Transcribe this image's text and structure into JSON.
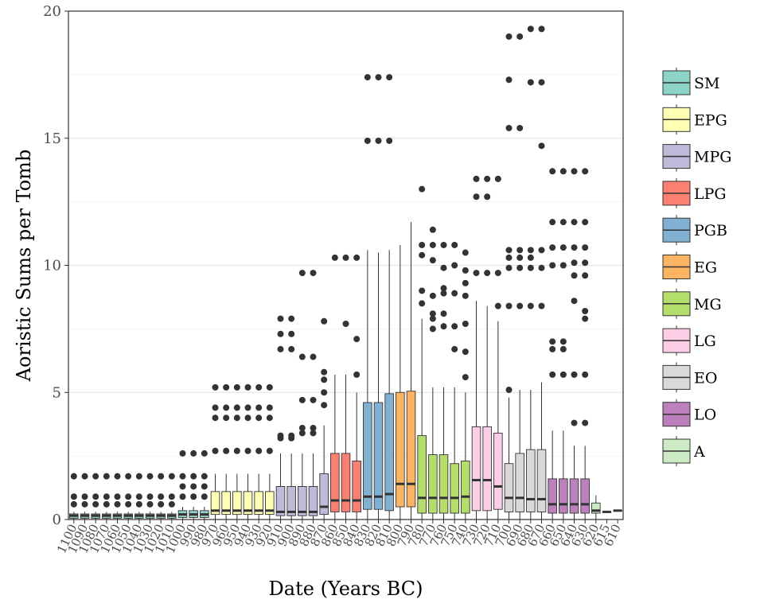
{
  "chart_data": {
    "type": "boxplot",
    "xlabel": "Date (Years BC)",
    "ylabel": "Aoristic Sums per Tomb",
    "ylim": [
      0,
      20
    ],
    "yticks": [
      0,
      5,
      10,
      15,
      20
    ],
    "grid": true,
    "legend_position": "right",
    "periods": [
      {
        "name": "SM",
        "color": "#8DD3C7"
      },
      {
        "name": "EPG",
        "color": "#FFFFB3"
      },
      {
        "name": "MPG",
        "color": "#BEBADA"
      },
      {
        "name": "LPG",
        "color": "#FB8072"
      },
      {
        "name": "PGB",
        "color": "#80B1D3"
      },
      {
        "name": "EG",
        "color": "#FDB462"
      },
      {
        "name": "MG",
        "color": "#B3DE69"
      },
      {
        "name": "LG",
        "color": "#FCCDE5"
      },
      {
        "name": "EO",
        "color": "#D9D9D9"
      },
      {
        "name": "LO",
        "color": "#BC80BD"
      },
      {
        "name": "A",
        "color": "#CCEBC5"
      }
    ],
    "boxes": [
      {
        "x": "1100",
        "period": "SM",
        "q1": 0.05,
        "median": 0.15,
        "q3": 0.22,
        "wlo": 0,
        "whi": 0.3,
        "outliers": [
          0.6,
          0.9,
          1.7
        ]
      },
      {
        "x": "1090",
        "period": "SM",
        "q1": 0.05,
        "median": 0.15,
        "q3": 0.22,
        "wlo": 0,
        "whi": 0.3,
        "outliers": [
          0.6,
          0.9,
          1.7
        ]
      },
      {
        "x": "1080",
        "period": "SM",
        "q1": 0.05,
        "median": 0.15,
        "q3": 0.22,
        "wlo": 0,
        "whi": 0.3,
        "outliers": [
          0.6,
          0.9,
          1.7
        ]
      },
      {
        "x": "1070",
        "period": "SM",
        "q1": 0.05,
        "median": 0.15,
        "q3": 0.22,
        "wlo": 0,
        "whi": 0.3,
        "outliers": [
          0.6,
          0.9,
          1.7
        ]
      },
      {
        "x": "1060",
        "period": "SM",
        "q1": 0.05,
        "median": 0.15,
        "q3": 0.22,
        "wlo": 0,
        "whi": 0.3,
        "outliers": [
          0.6,
          0.9,
          1.7
        ]
      },
      {
        "x": "1050",
        "period": "SM",
        "q1": 0.05,
        "median": 0.15,
        "q3": 0.22,
        "wlo": 0,
        "whi": 0.3,
        "outliers": [
          0.6,
          0.9,
          1.7
        ]
      },
      {
        "x": "1040",
        "period": "SM",
        "q1": 0.05,
        "median": 0.15,
        "q3": 0.22,
        "wlo": 0,
        "whi": 0.3,
        "outliers": [
          0.6,
          0.9,
          1.7
        ]
      },
      {
        "x": "1030",
        "period": "SM",
        "q1": 0.05,
        "median": 0.15,
        "q3": 0.22,
        "wlo": 0,
        "whi": 0.3,
        "outliers": [
          0.6,
          0.9,
          1.7
        ]
      },
      {
        "x": "1020",
        "period": "SM",
        "q1": 0.05,
        "median": 0.15,
        "q3": 0.22,
        "wlo": 0,
        "whi": 0.3,
        "outliers": [
          0.6,
          0.9,
          1.7
        ]
      },
      {
        "x": "1010",
        "period": "SM",
        "q1": 0.05,
        "median": 0.15,
        "q3": 0.22,
        "wlo": 0,
        "whi": 0.3,
        "outliers": [
          0.6,
          0.9,
          1.7
        ]
      },
      {
        "x": "1000",
        "period": "SM",
        "q1": 0.08,
        "median": 0.2,
        "q3": 0.35,
        "wlo": 0,
        "whi": 0.5,
        "outliers": [
          0.9,
          1.3,
          1.7,
          2.6
        ]
      },
      {
        "x": "990",
        "period": "SM",
        "q1": 0.08,
        "median": 0.2,
        "q3": 0.35,
        "wlo": 0,
        "whi": 0.5,
        "outliers": [
          0.9,
          1.3,
          1.7,
          2.6
        ]
      },
      {
        "x": "980",
        "period": "SM",
        "q1": 0.08,
        "median": 0.2,
        "q3": 0.35,
        "wlo": 0,
        "whi": 0.5,
        "outliers": [
          0.9,
          1.3,
          1.7,
          2.6
        ]
      },
      {
        "x": "970",
        "period": "EPG",
        "q1": 0.2,
        "median": 0.35,
        "q3": 1.1,
        "wlo": 0,
        "whi": 1.8,
        "outliers": [
          2.7,
          4.0,
          4.4,
          5.2
        ]
      },
      {
        "x": "960",
        "period": "EPG",
        "q1": 0.2,
        "median": 0.35,
        "q3": 1.1,
        "wlo": 0,
        "whi": 1.8,
        "outliers": [
          2.7,
          4.0,
          4.4,
          5.2
        ]
      },
      {
        "x": "950",
        "period": "EPG",
        "q1": 0.2,
        "median": 0.35,
        "q3": 1.1,
        "wlo": 0,
        "whi": 1.8,
        "outliers": [
          2.7,
          4.0,
          4.4,
          5.2
        ]
      },
      {
        "x": "940",
        "period": "EPG",
        "q1": 0.2,
        "median": 0.35,
        "q3": 1.1,
        "wlo": 0,
        "whi": 1.8,
        "outliers": [
          2.7,
          4.0,
          4.4,
          5.2
        ]
      },
      {
        "x": "930",
        "period": "EPG",
        "q1": 0.2,
        "median": 0.35,
        "q3": 1.1,
        "wlo": 0,
        "whi": 1.8,
        "outliers": [
          2.7,
          4.0,
          4.4,
          5.2
        ]
      },
      {
        "x": "920",
        "period": "EPG",
        "q1": 0.2,
        "median": 0.35,
        "q3": 1.1,
        "wlo": 0,
        "whi": 1.8,
        "outliers": [
          2.7,
          4.0,
          4.4,
          5.2
        ]
      },
      {
        "x": "910",
        "period": "MPG",
        "q1": 0.15,
        "median": 0.3,
        "q3": 1.3,
        "wlo": 0,
        "whi": 2.6,
        "outliers": [
          3.2,
          3.3,
          6.7,
          7.3,
          7.9
        ]
      },
      {
        "x": "900",
        "period": "MPG",
        "q1": 0.15,
        "median": 0.3,
        "q3": 1.3,
        "wlo": 0,
        "whi": 2.6,
        "outliers": [
          3.2,
          3.3,
          6.7,
          7.3,
          7.9
        ]
      },
      {
        "x": "890",
        "period": "MPG",
        "q1": 0.15,
        "median": 0.3,
        "q3": 1.3,
        "wlo": 0,
        "whi": 2.6,
        "outliers": [
          3.4,
          3.6,
          4.7,
          6.4,
          9.7
        ]
      },
      {
        "x": "880",
        "period": "MPG",
        "q1": 0.15,
        "median": 0.3,
        "q3": 1.3,
        "wlo": 0,
        "whi": 2.6,
        "outliers": [
          3.4,
          3.6,
          4.7,
          6.4,
          9.7
        ]
      },
      {
        "x": "870",
        "period": "MPG",
        "q1": 0.2,
        "median": 0.5,
        "q3": 1.8,
        "wlo": 0,
        "whi": 3.7,
        "outliers": [
          4.5,
          5.0,
          5.5,
          5.8,
          7.8
        ]
      },
      {
        "x": "860",
        "period": "LPG",
        "q1": 0.3,
        "median": 0.75,
        "q3": 2.6,
        "wlo": 0,
        "whi": 5.7,
        "outliers": [
          10.3
        ]
      },
      {
        "x": "850",
        "period": "LPG",
        "q1": 0.3,
        "median": 0.75,
        "q3": 2.6,
        "wlo": 0,
        "whi": 5.7,
        "outliers": [
          7.7,
          10.3
        ]
      },
      {
        "x": "840",
        "period": "LPG",
        "q1": 0.3,
        "median": 0.75,
        "q3": 2.3,
        "wlo": 0,
        "whi": 5.0,
        "outliers": [
          5.7,
          7.1,
          10.3
        ]
      },
      {
        "x": "830",
        "period": "PGB",
        "q1": 0.4,
        "median": 0.9,
        "q3": 4.6,
        "wlo": 0,
        "whi": 10.6,
        "outliers": [
          14.9,
          17.4
        ]
      },
      {
        "x": "820",
        "period": "PGB",
        "q1": 0.4,
        "median": 0.9,
        "q3": 4.6,
        "wlo": 0,
        "whi": 10.5,
        "outliers": [
          14.9,
          17.4
        ]
      },
      {
        "x": "810",
        "period": "PGB",
        "q1": 0.35,
        "median": 1.0,
        "q3": 4.95,
        "wlo": 0,
        "whi": 10.6,
        "outliers": [
          14.9,
          17.4
        ]
      },
      {
        "x": "800",
        "period": "EG",
        "q1": 0.5,
        "median": 1.4,
        "q3": 5.0,
        "wlo": 0,
        "whi": 10.8,
        "outliers": []
      },
      {
        "x": "790",
        "period": "EG",
        "q1": 0.5,
        "median": 1.4,
        "q3": 5.05,
        "wlo": 0,
        "whi": 11.7,
        "outliers": []
      },
      {
        "x": "780",
        "period": "MG",
        "q1": 0.25,
        "median": 0.85,
        "q3": 3.3,
        "wlo": 0,
        "whi": 7.9,
        "outliers": [
          8.5,
          9.0,
          10.4,
          10.8,
          13.0
        ]
      },
      {
        "x": "770",
        "period": "MG",
        "q1": 0.25,
        "median": 0.85,
        "q3": 2.55,
        "wlo": 0,
        "whi": 5.2,
        "outliers": [
          7.5,
          7.9,
          8.1,
          8.8,
          10.2,
          10.8,
          11.4
        ]
      },
      {
        "x": "760",
        "period": "MG",
        "q1": 0.25,
        "median": 0.85,
        "q3": 2.55,
        "wlo": 0,
        "whi": 5.2,
        "outliers": [
          7.6,
          8.1,
          8.9,
          9.1,
          9.9,
          10.8
        ]
      },
      {
        "x": "750",
        "period": "MG",
        "q1": 0.25,
        "median": 0.85,
        "q3": 2.2,
        "wlo": 0,
        "whi": 5.2,
        "outliers": [
          6.7,
          7.6,
          8.9,
          10.0,
          10.8
        ]
      },
      {
        "x": "740",
        "period": "MG",
        "q1": 0.25,
        "median": 0.9,
        "q3": 2.3,
        "wlo": 0,
        "whi": 5.0,
        "outliers": [
          5.6,
          6.6,
          7.7,
          8.8,
          9.3,
          9.8,
          10.5
        ]
      },
      {
        "x": "730",
        "period": "LG",
        "q1": 0.35,
        "median": 1.55,
        "q3": 3.65,
        "wlo": 0,
        "whi": 8.6,
        "outliers": [
          9.7,
          12.7,
          13.4
        ]
      },
      {
        "x": "720",
        "period": "LG",
        "q1": 0.35,
        "median": 1.55,
        "q3": 3.65,
        "wlo": 0,
        "whi": 8.4,
        "outliers": [
          9.7,
          12.7,
          13.4
        ]
      },
      {
        "x": "710",
        "period": "LG",
        "q1": 0.4,
        "median": 1.3,
        "q3": 3.4,
        "wlo": 0,
        "whi": 7.8,
        "outliers": [
          8.4,
          9.7,
          13.4
        ]
      },
      {
        "x": "700",
        "period": "EO",
        "q1": 0.3,
        "median": 0.85,
        "q3": 2.2,
        "wlo": 0,
        "whi": 4.8,
        "outliers": [
          5.1,
          8.4,
          9.9,
          10.3,
          10.6,
          15.4,
          17.3,
          19.0
        ]
      },
      {
        "x": "690",
        "period": "EO",
        "q1": 0.3,
        "median": 0.85,
        "q3": 2.6,
        "wlo": 0,
        "whi": 5.1,
        "outliers": [
          8.4,
          9.9,
          10.3,
          10.6,
          15.4,
          19.0
        ]
      },
      {
        "x": "680",
        "period": "EO",
        "q1": 0.3,
        "median": 0.8,
        "q3": 2.75,
        "wlo": 0,
        "whi": 5.1,
        "outliers": [
          8.4,
          9.9,
          10.3,
          10.6,
          17.2,
          19.3
        ]
      },
      {
        "x": "670",
        "period": "EO",
        "q1": 0.3,
        "median": 0.8,
        "q3": 2.75,
        "wlo": 0,
        "whi": 5.4,
        "outliers": [
          8.4,
          9.9,
          10.6,
          14.7,
          17.2,
          19.3
        ]
      },
      {
        "x": "660",
        "period": "LO",
        "q1": 0.25,
        "median": 0.6,
        "q3": 1.6,
        "wlo": 0,
        "whi": 3.5,
        "outliers": [
          5.7,
          6.7,
          7.0,
          10.0,
          10.7,
          11.7,
          13.7
        ]
      },
      {
        "x": "650",
        "period": "LO",
        "q1": 0.25,
        "median": 0.6,
        "q3": 1.6,
        "wlo": 0,
        "whi": 3.5,
        "outliers": [
          5.7,
          6.7,
          7.0,
          10.0,
          10.7,
          11.7,
          13.7
        ]
      },
      {
        "x": "640",
        "period": "LO",
        "q1": 0.25,
        "median": 0.6,
        "q3": 1.6,
        "wlo": 0,
        "whi": 2.9,
        "outliers": [
          3.8,
          5.7,
          8.6,
          9.6,
          10.1,
          10.7,
          11.7,
          13.7
        ]
      },
      {
        "x": "630",
        "period": "LO",
        "q1": 0.25,
        "median": 0.6,
        "q3": 1.6,
        "wlo": 0,
        "whi": 2.9,
        "outliers": [
          3.8,
          5.7,
          7.9,
          8.2,
          9.6,
          10.1,
          10.7,
          11.7,
          13.7
        ]
      },
      {
        "x": "620",
        "period": "A",
        "q1": 0.25,
        "median": 0.35,
        "q3": 0.65,
        "wlo": 0,
        "whi": 0.95,
        "outliers": []
      },
      {
        "x": "615",
        "period": "A",
        "q1": 0.3,
        "median": 0.3,
        "q3": 0.3,
        "wlo": 0.3,
        "whi": 0.3,
        "outliers": []
      },
      {
        "x": "610",
        "period": "A",
        "q1": 0.35,
        "median": 0.35,
        "q3": 0.35,
        "wlo": 0.35,
        "whi": 0.35,
        "outliers": []
      }
    ],
    "xtick_labels": [
      "1100",
      "1090",
      "1080",
      "1070",
      "1060",
      "1050",
      "1040",
      "1030",
      "1020",
      "1010",
      "1000",
      "990",
      "980",
      "970",
      "960",
      "950",
      "940",
      "930",
      "920",
      "910",
      "900",
      "890",
      "880",
      "870",
      "860",
      "850",
      "840",
      "830",
      "820",
      "810",
      "800",
      "790",
      "780",
      "770",
      "760",
      "750",
      "740",
      "730",
      "720",
      "710",
      "700",
      "690",
      "680",
      "670",
      "660",
      "650",
      "640",
      "630",
      "620",
      "615",
      "610"
    ]
  }
}
